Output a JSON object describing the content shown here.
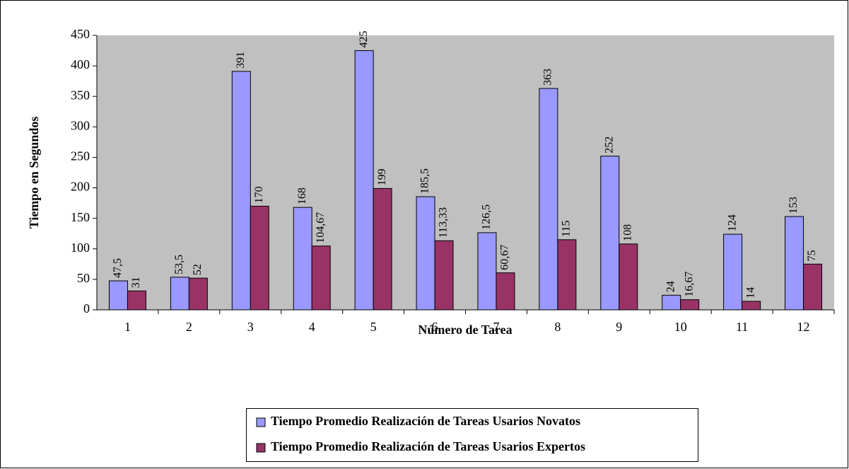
{
  "chart_data": {
    "type": "bar",
    "y_label": "Tiempo en Segundos",
    "x_label": "Número de Tarea",
    "categories": [
      "1",
      "2",
      "3",
      "4",
      "5",
      "6",
      "7",
      "8",
      "9",
      "10",
      "11",
      "12"
    ],
    "series": [
      {
        "name": "Tiempo Promedio Realización de Tareas Usarios Novatos",
        "color": "#9999ff",
        "values": [
          47.5,
          53.5,
          391,
          168,
          425,
          185.5,
          126.5,
          363,
          252,
          24,
          124,
          153
        ],
        "value_labels": [
          "47,5",
          "53,5",
          "391",
          "168",
          "425",
          "185,5",
          "126,5",
          "363",
          "252",
          "24",
          "124",
          "153"
        ]
      },
      {
        "name": "Tiempo Promedio Realización de Tareas Usarios Expertos",
        "color": "#993366",
        "values": [
          31,
          52,
          170,
          104.67,
          199,
          113.33,
          60.67,
          115,
          108,
          16.67,
          14,
          75
        ],
        "value_labels": [
          "31",
          "52",
          "170",
          "104,67",
          "199",
          "113,33",
          "60,67",
          "115",
          "108",
          "16,67",
          "14",
          "75"
        ]
      }
    ],
    "ylim": [
      0,
      450
    ],
    "yticks": [
      0,
      50,
      100,
      150,
      200,
      250,
      300,
      350,
      400,
      450
    ],
    "plot_background": "#c0c0c0",
    "legend_position": "bottom"
  }
}
